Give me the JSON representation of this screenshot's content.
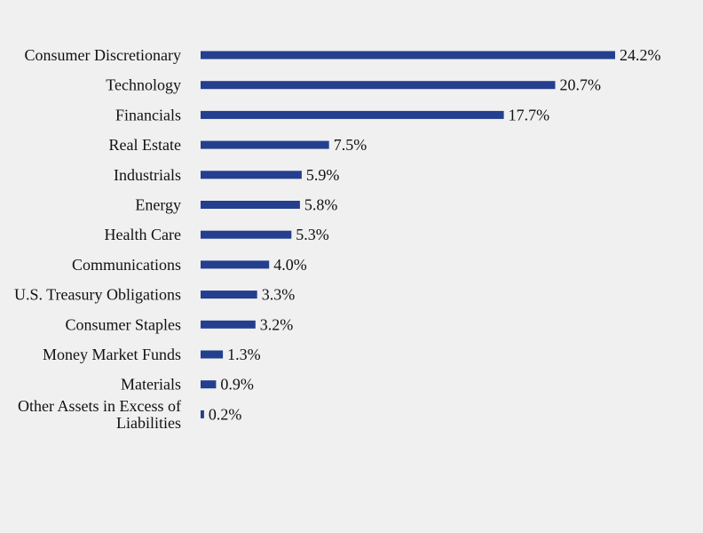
{
  "chart_data": {
    "type": "bar",
    "orientation": "horizontal",
    "title": "",
    "xlabel": "",
    "ylabel": "",
    "grid": false,
    "legend": "none",
    "bar_color": "#243f8e",
    "background": "#f0f0f0",
    "categories": [
      "Consumer Discretionary",
      "Technology",
      "Financials",
      "Real Estate",
      "Industrials",
      "Energy",
      "Health Care",
      "Communications",
      "U.S. Treasury Obligations",
      "Consumer Staples",
      "Money Market Funds",
      "Materials",
      "Other Assets in Excess of Liabilities"
    ],
    "values": [
      24.2,
      20.7,
      17.7,
      7.5,
      5.9,
      5.8,
      5.3,
      4.0,
      3.3,
      3.2,
      1.3,
      0.9,
      0.2
    ],
    "value_labels": [
      "24.2%",
      "20.7%",
      "17.7%",
      "7.5%",
      "5.9%",
      "5.8%",
      "5.3%",
      "4.0%",
      "3.3%",
      "3.2%",
      "1.3%",
      "0.9%",
      "0.2%"
    ],
    "xlim": [
      0,
      24.2
    ]
  }
}
